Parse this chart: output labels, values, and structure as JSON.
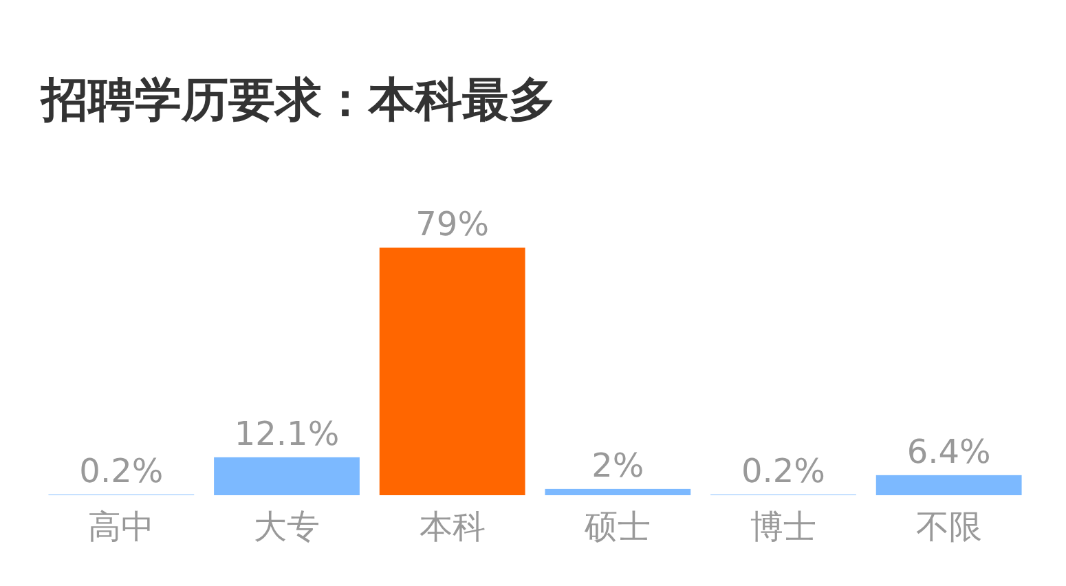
{
  "chart_data": {
    "type": "bar",
    "title": "招聘学历要求：本科最多",
    "categories": [
      "高中",
      "大专",
      "本科",
      "硕士",
      "博士",
      "不限"
    ],
    "values": [
      0.2,
      12.1,
      79,
      2,
      0.2,
      6.4
    ],
    "value_labels": [
      "0.2%",
      "12.1%",
      "79%",
      "2%",
      "0.2%",
      "6.4%"
    ],
    "colors": [
      "#7cb9ff",
      "#7cb9ff",
      "#ff6600",
      "#7cb9ff",
      "#7cb9ff",
      "#7cb9ff"
    ]
  }
}
